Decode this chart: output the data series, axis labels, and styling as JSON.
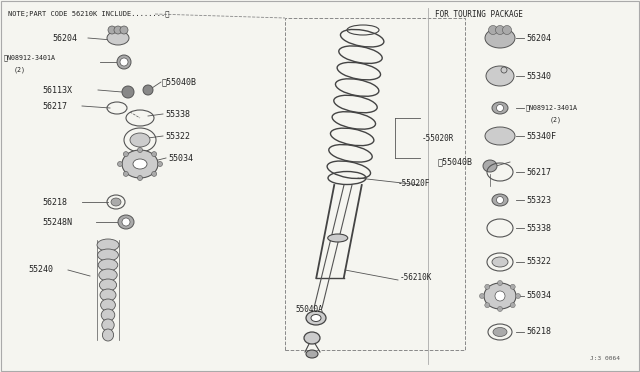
{
  "bg_color": "#f5f5f0",
  "line_color": "#555555",
  "dark_color": "#222222",
  "note_text": "NOTE;PART CODE 56210K INCLUDE........",
  "note_symbol": "※",
  "touring_text": "FOR TOURING PACKAGE",
  "diagram_id": "J:3 0064",
  "figsize": [
    6.4,
    3.72
  ],
  "dpi": 100
}
